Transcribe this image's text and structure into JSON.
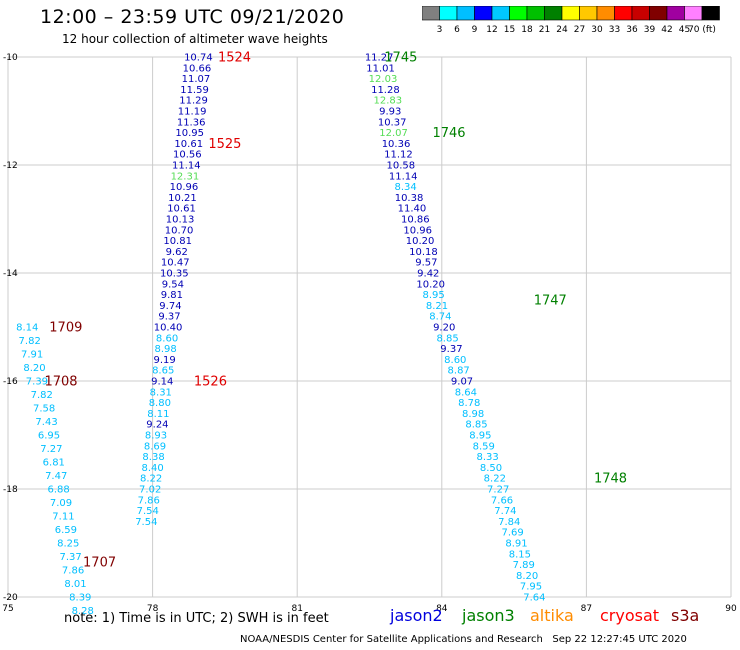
{
  "header": {
    "title": "12:00 – 23:59 UTC 09/21/2020",
    "subtitle": "12 hour collection of altimeter wave heights"
  },
  "colorbar": {
    "labels": [
      "3",
      "6",
      "9",
      "12",
      "15",
      "18",
      "21",
      "24",
      "27",
      "30",
      "33",
      "36",
      "39",
      "42",
      "45",
      "70 (ft)"
    ],
    "colors": [
      "#808080",
      "#00ffff",
      "#00bfff",
      "#0000ff",
      "#00c8ff",
      "#00ff00",
      "#00c000",
      "#008000",
      "#ffff00",
      "#ffc800",
      "#ff8c00",
      "#ff0000",
      "#c80000",
      "#800000",
      "#a000a0",
      "#ff80ff",
      "#000000"
    ]
  },
  "legend": {
    "note": "note: 1) Time is in UTC; 2) SWH is in feet",
    "satellites": [
      {
        "name": "jason2",
        "color": "#0000dd"
      },
      {
        "name": "jason3",
        "color": "#008000"
      },
      {
        "name": "altika",
        "color": "#ff8c00"
      },
      {
        "name": "cryosat",
        "color": "#ff0000"
      },
      {
        "name": "s3a",
        "color": "#800000"
      }
    ]
  },
  "footer": {
    "credit": "NOAA/NESDIS Center for Satellite Applications and Research",
    "timestamp": "Sep 22 12:27:45 UTC 2020"
  },
  "chart_data": {
    "type": "scatter",
    "x_ticks": [
      75,
      78,
      81,
      84,
      87,
      90
    ],
    "y_ticks": [
      -10,
      -12,
      -14,
      -16,
      -18,
      -20
    ],
    "xlim": [
      75,
      90
    ],
    "ylim": [
      -20,
      -10
    ],
    "grid": true,
    "color_key": {
      "c": "#00bfff",
      "b": "#0000b4",
      "g": "#55dd55"
    },
    "series": [
      {
        "labels": [
          {
            "text": "1709",
            "x": 76.2,
            "y": -15.0,
            "color": "#800000"
          },
          {
            "text": "1708",
            "x": 76.1,
            "y": -16.0,
            "color": "#800000"
          },
          {
            "text": "1707",
            "x": 76.9,
            "y": -19.35,
            "color": "#800000"
          }
        ],
        "points": [
          {
            "x": 75.4,
            "y": -15.0,
            "v": "8.14",
            "c": "c"
          },
          {
            "x": 75.45,
            "y": -15.25,
            "v": "7.82",
            "c": "c"
          },
          {
            "x": 75.5,
            "y": -15.5,
            "v": "7.91",
            "c": "c"
          },
          {
            "x": 75.55,
            "y": -15.75,
            "v": "8.20",
            "c": "c"
          },
          {
            "x": 75.6,
            "y": -16.0,
            "v": "7.39",
            "c": "c"
          },
          {
            "x": 75.7,
            "y": -16.25,
            "v": "7.82",
            "c": "c"
          },
          {
            "x": 75.75,
            "y": -16.5,
            "v": "7.58",
            "c": "c"
          },
          {
            "x": 75.8,
            "y": -16.75,
            "v": "7.43",
            "c": "c"
          },
          {
            "x": 75.85,
            "y": -17.0,
            "v": "6.95",
            "c": "c"
          },
          {
            "x": 75.9,
            "y": -17.25,
            "v": "7.27",
            "c": "c"
          },
          {
            "x": 75.95,
            "y": -17.5,
            "v": "6.81",
            "c": "c"
          },
          {
            "x": 76.0,
            "y": -17.75,
            "v": "7.47",
            "c": "c"
          },
          {
            "x": 76.05,
            "y": -18.0,
            "v": "6.88",
            "c": "c"
          },
          {
            "x": 76.1,
            "y": -18.25,
            "v": "7.09",
            "c": "c"
          },
          {
            "x": 76.15,
            "y": -18.5,
            "v": "7.11",
            "c": "c"
          },
          {
            "x": 76.2,
            "y": -18.75,
            "v": "6.59",
            "c": "c"
          },
          {
            "x": 76.25,
            "y": -19.0,
            "v": "8.25",
            "c": "c"
          },
          {
            "x": 76.3,
            "y": -19.25,
            "v": "7.37",
            "c": "c"
          },
          {
            "x": 76.35,
            "y": -19.5,
            "v": "7.86",
            "c": "c"
          },
          {
            "x": 76.4,
            "y": -19.75,
            "v": "8.01",
            "c": "c"
          },
          {
            "x": 76.5,
            "y": -20.0,
            "v": "8.39",
            "c": "c"
          },
          {
            "x": 76.55,
            "y": -20.25,
            "v": "8.28",
            "c": "c"
          }
        ]
      },
      {
        "labels": [
          {
            "text": "1524",
            "x": 79.7,
            "y": -10.0,
            "color": "#e00000"
          },
          {
            "text": "1525",
            "x": 79.5,
            "y": -11.6,
            "color": "#e00000"
          },
          {
            "text": "1526",
            "x": 79.2,
            "y": -16.0,
            "color": "#e00000"
          }
        ],
        "points": [
          {
            "x": 78.95,
            "y": -10.0,
            "v": "10.74",
            "c": "b"
          },
          {
            "x": 78.92,
            "y": -10.2,
            "v": "10.66",
            "c": "b"
          },
          {
            "x": 78.9,
            "y": -10.4,
            "v": "11.07",
            "c": "b"
          },
          {
            "x": 78.87,
            "y": -10.6,
            "v": "11.59",
            "c": "b"
          },
          {
            "x": 78.85,
            "y": -10.8,
            "v": "11.29",
            "c": "b"
          },
          {
            "x": 78.82,
            "y": -11.0,
            "v": "11.19",
            "c": "b"
          },
          {
            "x": 78.8,
            "y": -11.2,
            "v": "11.36",
            "c": "b"
          },
          {
            "x": 78.77,
            "y": -11.4,
            "v": "10.95",
            "c": "b"
          },
          {
            "x": 78.75,
            "y": -11.6,
            "v": "10.61",
            "c": "b"
          },
          {
            "x": 78.72,
            "y": -11.8,
            "v": "10.56",
            "c": "b"
          },
          {
            "x": 78.7,
            "y": -12.0,
            "v": "11.14",
            "c": "b"
          },
          {
            "x": 78.67,
            "y": -12.2,
            "v": "12.31",
            "c": "g"
          },
          {
            "x": 78.65,
            "y": -12.4,
            "v": "10.96",
            "c": "b"
          },
          {
            "x": 78.62,
            "y": -12.6,
            "v": "10.21",
            "c": "b"
          },
          {
            "x": 78.6,
            "y": -12.8,
            "v": "10.61",
            "c": "b"
          },
          {
            "x": 78.57,
            "y": -13.0,
            "v": "10.13",
            "c": "b"
          },
          {
            "x": 78.55,
            "y": -13.2,
            "v": "10.70",
            "c": "b"
          },
          {
            "x": 78.52,
            "y": -13.4,
            "v": "10.81",
            "c": "b"
          },
          {
            "x": 78.5,
            "y": -13.6,
            "v": "9.62",
            "c": "b"
          },
          {
            "x": 78.47,
            "y": -13.8,
            "v": "10.47",
            "c": "b"
          },
          {
            "x": 78.45,
            "y": -14.0,
            "v": "10.35",
            "c": "b"
          },
          {
            "x": 78.42,
            "y": -14.2,
            "v": "9.54",
            "c": "b"
          },
          {
            "x": 78.4,
            "y": -14.4,
            "v": "9.81",
            "c": "b"
          },
          {
            "x": 78.37,
            "y": -14.6,
            "v": "9.74",
            "c": "b"
          },
          {
            "x": 78.35,
            "y": -14.8,
            "v": "9.37",
            "c": "b"
          },
          {
            "x": 78.32,
            "y": -15.0,
            "v": "10.40",
            "c": "b"
          },
          {
            "x": 78.3,
            "y": -15.2,
            "v": "8.60",
            "c": "c"
          },
          {
            "x": 78.27,
            "y": -15.4,
            "v": "8.98",
            "c": "c"
          },
          {
            "x": 78.25,
            "y": -15.6,
            "v": "9.19",
            "c": "b"
          },
          {
            "x": 78.22,
            "y": -15.8,
            "v": "8.65",
            "c": "c"
          },
          {
            "x": 78.2,
            "y": -16.0,
            "v": "9.14",
            "c": "b"
          },
          {
            "x": 78.17,
            "y": -16.2,
            "v": "8.31",
            "c": "c"
          },
          {
            "x": 78.15,
            "y": -16.4,
            "v": "8.80",
            "c": "c"
          },
          {
            "x": 78.12,
            "y": -16.6,
            "v": "8.11",
            "c": "c"
          },
          {
            "x": 78.1,
            "y": -16.8,
            "v": "9.24",
            "c": "b"
          },
          {
            "x": 78.07,
            "y": -17.0,
            "v": "8.93",
            "c": "c"
          },
          {
            "x": 78.05,
            "y": -17.2,
            "v": "8.69",
            "c": "c"
          },
          {
            "x": 78.02,
            "y": -17.4,
            "v": "8.38",
            "c": "c"
          },
          {
            "x": 78.0,
            "y": -17.6,
            "v": "8.40",
            "c": "c"
          },
          {
            "x": 77.97,
            "y": -17.8,
            "v": "8.22",
            "c": "c"
          },
          {
            "x": 77.95,
            "y": -18.0,
            "v": "7.02",
            "c": "c"
          },
          {
            "x": 77.92,
            "y": -18.2,
            "v": "7.86",
            "c": "c"
          },
          {
            "x": 77.9,
            "y": -18.4,
            "v": "7.54",
            "c": "c"
          },
          {
            "x": 77.87,
            "y": -18.6,
            "v": "7.54",
            "c": "c"
          }
        ]
      },
      {
        "labels": [
          {
            "text": "1745",
            "x": 83.15,
            "y": -10.0,
            "color": "#008000"
          },
          {
            "text": "1746",
            "x": 84.15,
            "y": -11.4,
            "color": "#008000"
          },
          {
            "text": "1747",
            "x": 86.25,
            "y": -14.5,
            "color": "#008000"
          },
          {
            "text": "1748",
            "x": 87.5,
            "y": -17.8,
            "color": "#008000"
          }
        ],
        "points": [
          {
            "x": 82.7,
            "y": -10.0,
            "v": "11.27",
            "c": "b"
          },
          {
            "x": 82.73,
            "y": -10.2,
            "v": "11.01",
            "c": "b"
          },
          {
            "x": 82.78,
            "y": -10.4,
            "v": "12.03",
            "c": "g"
          },
          {
            "x": 82.83,
            "y": -10.6,
            "v": "11.28",
            "c": "b"
          },
          {
            "x": 82.88,
            "y": -10.8,
            "v": "12.83",
            "c": "g"
          },
          {
            "x": 82.93,
            "y": -11.0,
            "v": "9.93",
            "c": "b"
          },
          {
            "x": 82.97,
            "y": -11.2,
            "v": "10.37",
            "c": "b"
          },
          {
            "x": 83.0,
            "y": -11.4,
            "v": "12.07",
            "c": "g"
          },
          {
            "x": 83.05,
            "y": -11.6,
            "v": "10.36",
            "c": "b"
          },
          {
            "x": 83.1,
            "y": -11.8,
            "v": "11.12",
            "c": "b"
          },
          {
            "x": 83.15,
            "y": -12.0,
            "v": "10.58",
            "c": "b"
          },
          {
            "x": 83.2,
            "y": -12.2,
            "v": "11.14",
            "c": "b"
          },
          {
            "x": 83.25,
            "y": -12.4,
            "v": "8.34",
            "c": "c"
          },
          {
            "x": 83.32,
            "y": -12.6,
            "v": "10.38",
            "c": "b"
          },
          {
            "x": 83.38,
            "y": -12.8,
            "v": "11.40",
            "c": "b"
          },
          {
            "x": 83.45,
            "y": -13.0,
            "v": "10.86",
            "c": "b"
          },
          {
            "x": 83.5,
            "y": -13.2,
            "v": "10.96",
            "c": "b"
          },
          {
            "x": 83.55,
            "y": -13.4,
            "v": "10.20",
            "c": "b"
          },
          {
            "x": 83.62,
            "y": -13.6,
            "v": "10.18",
            "c": "b"
          },
          {
            "x": 83.68,
            "y": -13.8,
            "v": "9.57",
            "c": "b"
          },
          {
            "x": 83.72,
            "y": -14.0,
            "v": "9.42",
            "c": "b"
          },
          {
            "x": 83.77,
            "y": -14.2,
            "v": "10.20",
            "c": "b"
          },
          {
            "x": 83.83,
            "y": -14.4,
            "v": "8.95",
            "c": "c"
          },
          {
            "x": 83.9,
            "y": -14.6,
            "v": "8.21",
            "c": "c"
          },
          {
            "x": 83.97,
            "y": -14.8,
            "v": "8.74",
            "c": "c"
          },
          {
            "x": 84.05,
            "y": -15.0,
            "v": "9.20",
            "c": "b"
          },
          {
            "x": 84.12,
            "y": -15.2,
            "v": "8.85",
            "c": "c"
          },
          {
            "x": 84.2,
            "y": -15.4,
            "v": "9.37",
            "c": "b"
          },
          {
            "x": 84.28,
            "y": -15.6,
            "v": "8.60",
            "c": "c"
          },
          {
            "x": 84.35,
            "y": -15.8,
            "v": "8.87",
            "c": "c"
          },
          {
            "x": 84.42,
            "y": -16.0,
            "v": "9.07",
            "c": "b"
          },
          {
            "x": 84.5,
            "y": -16.2,
            "v": "8.64",
            "c": "c"
          },
          {
            "x": 84.57,
            "y": -16.4,
            "v": "8.78",
            "c": "c"
          },
          {
            "x": 84.65,
            "y": -16.6,
            "v": "8.98",
            "c": "c"
          },
          {
            "x": 84.72,
            "y": -16.8,
            "v": "8.85",
            "c": "c"
          },
          {
            "x": 84.8,
            "y": -17.0,
            "v": "8.95",
            "c": "c"
          },
          {
            "x": 84.87,
            "y": -17.2,
            "v": "8.59",
            "c": "c"
          },
          {
            "x": 84.95,
            "y": -17.4,
            "v": "8.33",
            "c": "c"
          },
          {
            "x": 85.02,
            "y": -17.6,
            "v": "8.50",
            "c": "c"
          },
          {
            "x": 85.1,
            "y": -17.8,
            "v": "8.22",
            "c": "c"
          },
          {
            "x": 85.17,
            "y": -18.0,
            "v": "7.27",
            "c": "c"
          },
          {
            "x": 85.25,
            "y": -18.2,
            "v": "7.66",
            "c": "c"
          },
          {
            "x": 85.32,
            "y": -18.4,
            "v": "7.74",
            "c": "c"
          },
          {
            "x": 85.4,
            "y": -18.6,
            "v": "7.84",
            "c": "c"
          },
          {
            "x": 85.47,
            "y": -18.8,
            "v": "7.69",
            "c": "c"
          },
          {
            "x": 85.55,
            "y": -19.0,
            "v": "8.91",
            "c": "c"
          },
          {
            "x": 85.62,
            "y": -19.2,
            "v": "8.15",
            "c": "c"
          },
          {
            "x": 85.7,
            "y": -19.4,
            "v": "7.89",
            "c": "c"
          },
          {
            "x": 85.77,
            "y": -19.6,
            "v": "8.20",
            "c": "c"
          },
          {
            "x": 85.85,
            "y": -19.8,
            "v": "7.95",
            "c": "c"
          },
          {
            "x": 85.92,
            "y": -20.0,
            "v": "7.64",
            "c": "c"
          }
        ]
      }
    ]
  }
}
